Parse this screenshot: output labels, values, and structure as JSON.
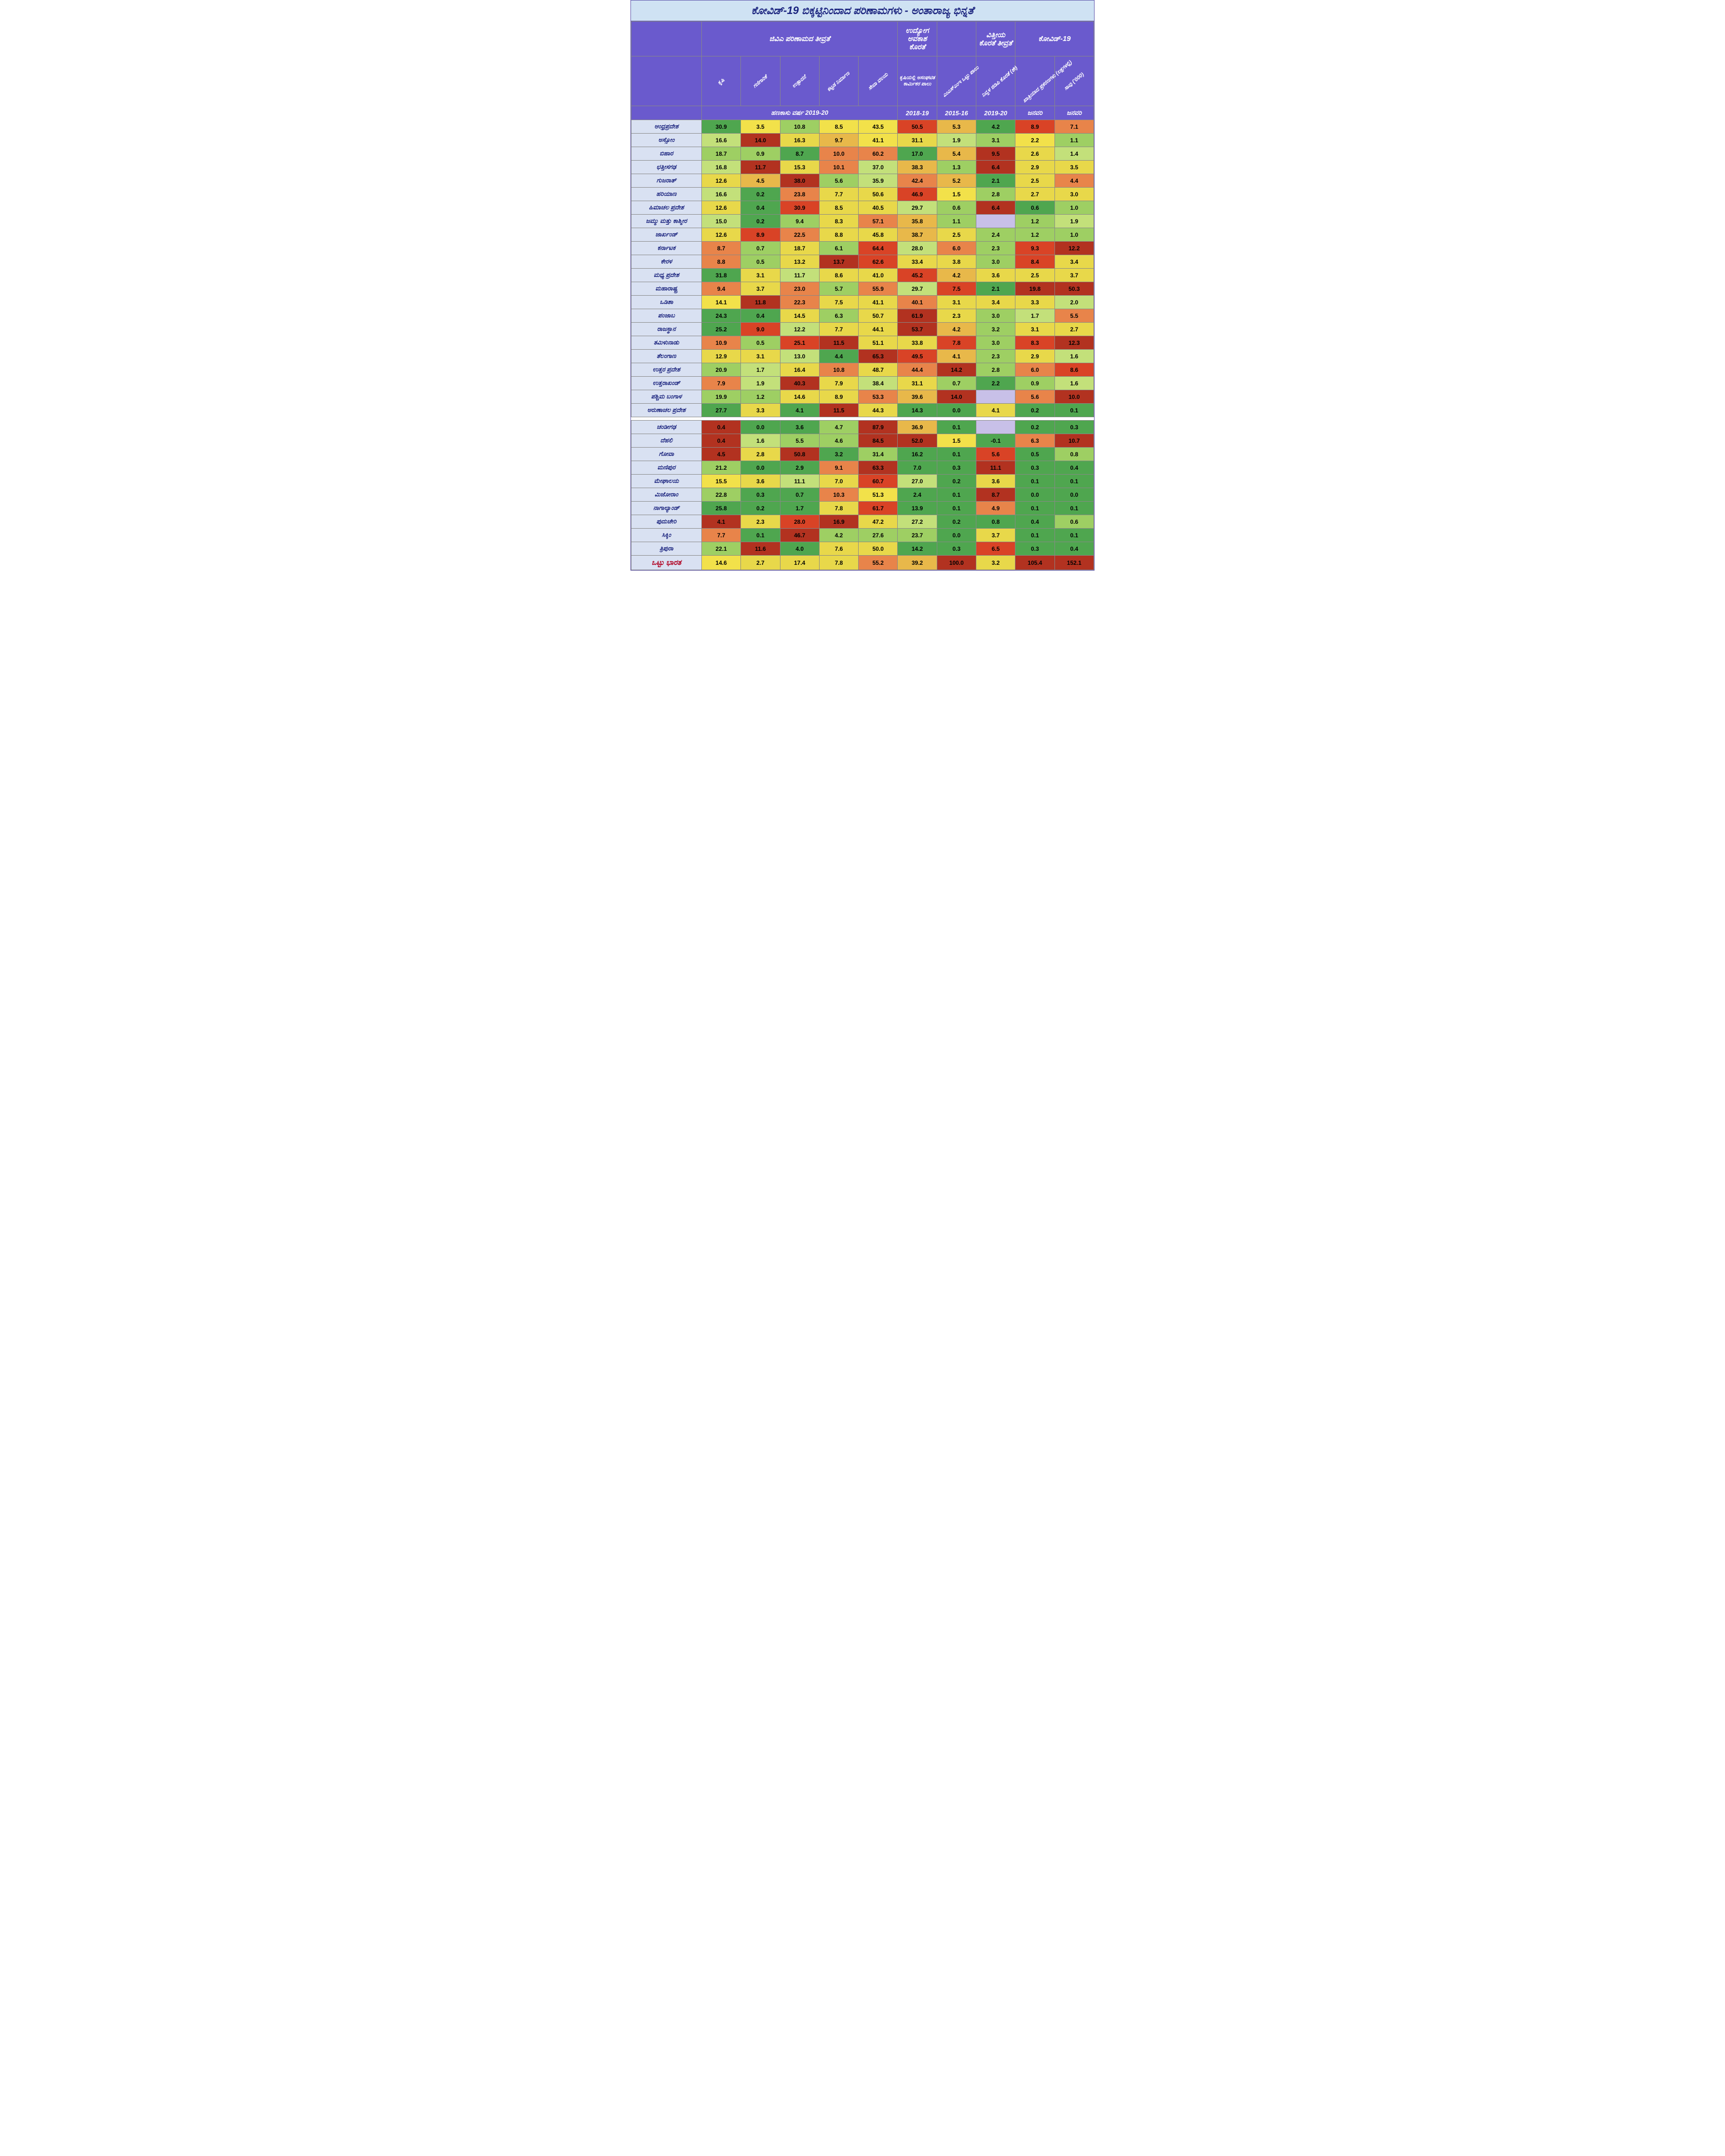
{
  "title": "ಕೋವಿಡ್-19 ಬಿಕ್ಕಟ್ಟಿನಿಂದಾದ ಪರಿಣಾಮಗಳು - ಅಂತಾರಾಜ್ಯ ಭಿನ್ನತೆ",
  "group_headers": [
    "ಜಿವಿಎ ಪರಿಣಾಮದ ತೀವ್ರತೆ",
    "ಉದ್ಯೋಗ ಅವಕಾಶ ಕೊರತೆ",
    "",
    "ವಿತ್ತೀಯ ಕೊರತೆ ತೀವ್ರತೆ",
    "ಕೋವಿಡ್-19"
  ],
  "sub_headers": [
    "ಕೃಷಿ",
    "ಗಣಿಗಾರಿಕೆ",
    "ಉತ್ಪಾದನೆ",
    "ಕಟ್ಟಡ ನಿರ್ಮಾಣ",
    "ಸೇವಾ ವಲಯ",
    "ಕೃಷಿಯಲ್ಲಿ ಅಸಂಘಟಿತ ಕಾರ್ಮಿಕರ ಪಾಲು",
    "ಎಂಎಸ್‌ಎಂಇ ಒಟ್ಟು ಪಾಲು",
    "ನಿವ್ವಳ ಜಿಡಿಪಿ ಕೊರತೆ (ಶೇ)",
    "ಖಾತ್ರಿಯಾದ ಪ್ರಕರಣಗಳು (ಲಕ್ಷಗಳಲ್ಲಿ)",
    "ಸಾವು ('000)"
  ],
  "year_headers": [
    "ಹಣಕಾಸು ವರ್ಷ 2019-20",
    "2018-19",
    "2015-16",
    "2019-20",
    "ಜನವರಿ",
    "ಜನವರಿ"
  ],
  "states_block1": [
    "ಆಂಧ್ರಪ್ರದೇಶ",
    "ಅಸ್ಸೋಂ",
    "ಬಿಹಾರ",
    "ಛತ್ತೀಸಗಢ",
    "ಗುಜರಾತ್",
    "ಹರಿಯಾಣ",
    "ಹಿಮಾಚಲ ಪ್ರದೇಶ",
    "ಜಮ್ಮು ಮತ್ತು ಕಾಶ್ಮೀರ",
    "ಜಾರ್ಖಂಡ್",
    "ಕರ್ನಾಟಕ",
    "ಕೇರಳ",
    "ಮಧ್ಯ ಪ್ರದೇಶ",
    "ಮಹಾರಾಷ್ಟ್ರ",
    "ಒಡಿಶಾ",
    "ಪಂಜಾಬ",
    "ರಾಜಸ್ಥಾನ",
    "ತಮಿಳುನಾಡು",
    "ತೆಲಂಗಾಣ",
    "ಉತ್ತರ ಪ್ರದೇಶ",
    "ಉತ್ತರಾಖಂಡ್",
    "ಪಶ್ಚಿಮ ಬಂಗಾಳ",
    "ಅರುಣಾಚಲ ಪ್ರದೇಶ"
  ],
  "states_block2": [
    "ಚಂಡೀಗಢ",
    "ದೆಹಲಿ",
    "ಗೋವಾ",
    "ಮಣಿಪುರ",
    "ಮೇಘಾಲಯ",
    "ಮಿಜೋರಾಂ",
    "ನಾಗಾಲ್ಯಾಂಡ್",
    "ಪುದುಚೇರಿ",
    "ಸಿಕ್ಕಿಂ",
    "ತ್ರಿಪುರಾ"
  ],
  "total_label": "ಒಟ್ಟು ಭಾರತ",
  "data_block1": [
    [
      [
        "30.9",
        "#4fa64f"
      ],
      [
        "3.5",
        "#f2e14a"
      ],
      [
        "10.8",
        "#9ecf63"
      ],
      [
        "8.5",
        "#f2e14a"
      ],
      [
        "43.5",
        "#f2e14a"
      ],
      [
        "50.5",
        "#d94326"
      ],
      [
        "5.3",
        "#e8b84a"
      ],
      [
        "4.2",
        "#4fa64f"
      ],
      [
        "8.9",
        "#d94326"
      ],
      [
        "7.1",
        "#e8844a"
      ]
    ],
    [
      [
        "16.6",
        "#c3e07a"
      ],
      [
        "14.0",
        "#b23220"
      ],
      [
        "16.3",
        "#e8d84a"
      ],
      [
        "9.7",
        "#e8b84a"
      ],
      [
        "41.1",
        "#f2e14a"
      ],
      [
        "31.1",
        "#e8d84a"
      ],
      [
        "1.9",
        "#c3e07a"
      ],
      [
        "3.1",
        "#9ecf63"
      ],
      [
        "2.2",
        "#f2e14a"
      ],
      [
        "1.1",
        "#9ecf63"
      ]
    ],
    [
      [
        "18.7",
        "#9ecf63"
      ],
      [
        "0.9",
        "#9ecf63"
      ],
      [
        "8.7",
        "#4fa64f"
      ],
      [
        "10.0",
        "#e8844a"
      ],
      [
        "60.2",
        "#e8844a"
      ],
      [
        "17.0",
        "#4fa64f"
      ],
      [
        "5.4",
        "#e8b84a"
      ],
      [
        "9.5",
        "#b23220"
      ],
      [
        "2.6",
        "#e8d84a"
      ],
      [
        "1.4",
        "#c3e07a"
      ]
    ],
    [
      [
        "16.8",
        "#c3e07a"
      ],
      [
        "11.7",
        "#b23220"
      ],
      [
        "15.3",
        "#e8d84a"
      ],
      [
        "10.1",
        "#e8844a"
      ],
      [
        "37.0",
        "#c3e07a"
      ],
      [
        "38.3",
        "#e8b84a"
      ],
      [
        "1.3",
        "#9ecf63"
      ],
      [
        "6.4",
        "#b23220"
      ],
      [
        "2.9",
        "#e8d84a"
      ],
      [
        "3.5",
        "#e8d84a"
      ]
    ],
    [
      [
        "12.6",
        "#e8d84a"
      ],
      [
        "4.5",
        "#e8b84a"
      ],
      [
        "38.0",
        "#b23220"
      ],
      [
        "5.6",
        "#9ecf63"
      ],
      [
        "35.9",
        "#c3e07a"
      ],
      [
        "42.4",
        "#e8844a"
      ],
      [
        "5.2",
        "#e8b84a"
      ],
      [
        "2.1",
        "#4fa64f"
      ],
      [
        "2.5",
        "#e8d84a"
      ],
      [
        "4.4",
        "#e8844a"
      ]
    ],
    [
      [
        "16.6",
        "#c3e07a"
      ],
      [
        "0.2",
        "#4fa64f"
      ],
      [
        "23.8",
        "#e8844a"
      ],
      [
        "7.7",
        "#e8d84a"
      ],
      [
        "50.6",
        "#e8d84a"
      ],
      [
        "46.9",
        "#d94326"
      ],
      [
        "1.5",
        "#f2e14a"
      ],
      [
        "2.8",
        "#9ecf63"
      ],
      [
        "2.7",
        "#e8d84a"
      ],
      [
        "3.0",
        "#e8d84a"
      ]
    ],
    [
      [
        "12.6",
        "#e8d84a"
      ],
      [
        "0.4",
        "#4fa64f"
      ],
      [
        "30.9",
        "#d94326"
      ],
      [
        "8.5",
        "#e8d84a"
      ],
      [
        "40.5",
        "#e8d84a"
      ],
      [
        "29.7",
        "#c3e07a"
      ],
      [
        "0.6",
        "#9ecf63"
      ],
      [
        "6.4",
        "#b23220"
      ],
      [
        "0.6",
        "#4fa64f"
      ],
      [
        "1.0",
        "#9ecf63"
      ]
    ],
    [
      [
        "15.0",
        "#c3e07a"
      ],
      [
        "0.2",
        "#4fa64f"
      ],
      [
        "9.4",
        "#9ecf63"
      ],
      [
        "8.3",
        "#e8d84a"
      ],
      [
        "57.1",
        "#e8844a"
      ],
      [
        "35.8",
        "#e8b84a"
      ],
      [
        "1.1",
        "#9ecf63"
      ],
      [
        "",
        ""
      ],
      [
        "1.2",
        "#9ecf63"
      ],
      [
        "1.9",
        "#c3e07a"
      ]
    ],
    [
      [
        "12.6",
        "#e8d84a"
      ],
      [
        "8.9",
        "#d94326"
      ],
      [
        "22.5",
        "#e8844a"
      ],
      [
        "8.8",
        "#e8d84a"
      ],
      [
        "45.8",
        "#e8d84a"
      ],
      [
        "38.7",
        "#e8b84a"
      ],
      [
        "2.5",
        "#e8d84a"
      ],
      [
        "2.4",
        "#9ecf63"
      ],
      [
        "1.2",
        "#9ecf63"
      ],
      [
        "1.0",
        "#9ecf63"
      ]
    ],
    [
      [
        "8.7",
        "#e8844a"
      ],
      [
        "0.7",
        "#9ecf63"
      ],
      [
        "18.7",
        "#e8d84a"
      ],
      [
        "6.1",
        "#9ecf63"
      ],
      [
        "64.4",
        "#d94326"
      ],
      [
        "28.0",
        "#c3e07a"
      ],
      [
        "6.0",
        "#e8844a"
      ],
      [
        "2.3",
        "#9ecf63"
      ],
      [
        "9.3",
        "#d94326"
      ],
      [
        "12.2",
        "#b23220"
      ]
    ],
    [
      [
        "8.8",
        "#e8844a"
      ],
      [
        "0.5",
        "#9ecf63"
      ],
      [
        "13.2",
        "#e8d84a"
      ],
      [
        "13.7",
        "#b23220"
      ],
      [
        "62.6",
        "#d94326"
      ],
      [
        "33.4",
        "#e8d84a"
      ],
      [
        "3.8",
        "#e8d84a"
      ],
      [
        "3.0",
        "#9ecf63"
      ],
      [
        "8.4",
        "#d94326"
      ],
      [
        "3.4",
        "#e8d84a"
      ]
    ],
    [
      [
        "31.8",
        "#4fa64f"
      ],
      [
        "3.1",
        "#e8d84a"
      ],
      [
        "11.7",
        "#c3e07a"
      ],
      [
        "8.6",
        "#e8d84a"
      ],
      [
        "41.0",
        "#e8d84a"
      ],
      [
        "45.2",
        "#d94326"
      ],
      [
        "4.2",
        "#e8b84a"
      ],
      [
        "3.6",
        "#e8d84a"
      ],
      [
        "2.5",
        "#e8d84a"
      ],
      [
        "3.7",
        "#e8d84a"
      ]
    ],
    [
      [
        "9.4",
        "#e8844a"
      ],
      [
        "3.7",
        "#e8d84a"
      ],
      [
        "23.0",
        "#e8844a"
      ],
      [
        "5.7",
        "#9ecf63"
      ],
      [
        "55.9",
        "#e8844a"
      ],
      [
        "29.7",
        "#c3e07a"
      ],
      [
        "7.5",
        "#d94326"
      ],
      [
        "2.1",
        "#4fa64f"
      ],
      [
        "19.8",
        "#b23220"
      ],
      [
        "50.3",
        "#b23220"
      ]
    ],
    [
      [
        "14.1",
        "#f2e14a"
      ],
      [
        "11.8",
        "#b23220"
      ],
      [
        "22.3",
        "#e8844a"
      ],
      [
        "7.5",
        "#e8d84a"
      ],
      [
        "41.1",
        "#e8d84a"
      ],
      [
        "40.1",
        "#e8844a"
      ],
      [
        "3.1",
        "#e8d84a"
      ],
      [
        "3.4",
        "#e8d84a"
      ],
      [
        "3.3",
        "#e8d84a"
      ],
      [
        "2.0",
        "#c3e07a"
      ]
    ],
    [
      [
        "24.3",
        "#4fa64f"
      ],
      [
        "0.4",
        "#4fa64f"
      ],
      [
        "14.5",
        "#e8d84a"
      ],
      [
        "6.3",
        "#9ecf63"
      ],
      [
        "50.7",
        "#e8d84a"
      ],
      [
        "61.9",
        "#b23220"
      ],
      [
        "2.3",
        "#e8d84a"
      ],
      [
        "3.0",
        "#9ecf63"
      ],
      [
        "1.7",
        "#c3e07a"
      ],
      [
        "5.5",
        "#e8844a"
      ]
    ],
    [
      [
        "25.2",
        "#4fa64f"
      ],
      [
        "9.0",
        "#d94326"
      ],
      [
        "12.2",
        "#c3e07a"
      ],
      [
        "7.7",
        "#e8d84a"
      ],
      [
        "44.1",
        "#e8d84a"
      ],
      [
        "53.7",
        "#b23220"
      ],
      [
        "4.2",
        "#e8b84a"
      ],
      [
        "3.2",
        "#9ecf63"
      ],
      [
        "3.1",
        "#e8d84a"
      ],
      [
        "2.7",
        "#e8d84a"
      ]
    ],
    [
      [
        "10.9",
        "#e8844a"
      ],
      [
        "0.5",
        "#9ecf63"
      ],
      [
        "25.1",
        "#d94326"
      ],
      [
        "11.5",
        "#b23220"
      ],
      [
        "51.1",
        "#e8d84a"
      ],
      [
        "33.8",
        "#e8d84a"
      ],
      [
        "7.8",
        "#d94326"
      ],
      [
        "3.0",
        "#9ecf63"
      ],
      [
        "8.3",
        "#d94326"
      ],
      [
        "12.3",
        "#b23220"
      ]
    ],
    [
      [
        "12.9",
        "#e8d84a"
      ],
      [
        "3.1",
        "#e8d84a"
      ],
      [
        "13.0",
        "#c3e07a"
      ],
      [
        "4.4",
        "#4fa64f"
      ],
      [
        "65.3",
        "#b23220"
      ],
      [
        "49.5",
        "#d94326"
      ],
      [
        "4.1",
        "#e8b84a"
      ],
      [
        "2.3",
        "#9ecf63"
      ],
      [
        "2.9",
        "#e8d84a"
      ],
      [
        "1.6",
        "#c3e07a"
      ]
    ],
    [
      [
        "20.9",
        "#9ecf63"
      ],
      [
        "1.7",
        "#c3e07a"
      ],
      [
        "16.4",
        "#e8d84a"
      ],
      [
        "10.8",
        "#e8844a"
      ],
      [
        "48.7",
        "#e8d84a"
      ],
      [
        "44.4",
        "#e8844a"
      ],
      [
        "14.2",
        "#b23220"
      ],
      [
        "2.8",
        "#9ecf63"
      ],
      [
        "6.0",
        "#e8844a"
      ],
      [
        "8.6",
        "#d94326"
      ]
    ],
    [
      [
        "7.9",
        "#e8844a"
      ],
      [
        "1.9",
        "#c3e07a"
      ],
      [
        "40.3",
        "#b23220"
      ],
      [
        "7.9",
        "#e8d84a"
      ],
      [
        "38.4",
        "#c3e07a"
      ],
      [
        "31.1",
        "#e8d84a"
      ],
      [
        "0.7",
        "#9ecf63"
      ],
      [
        "2.2",
        "#4fa64f"
      ],
      [
        "0.9",
        "#9ecf63"
      ],
      [
        "1.6",
        "#c3e07a"
      ]
    ],
    [
      [
        "19.9",
        "#9ecf63"
      ],
      [
        "1.2",
        "#9ecf63"
      ],
      [
        "14.6",
        "#e8d84a"
      ],
      [
        "8.9",
        "#e8d84a"
      ],
      [
        "53.3",
        "#e8844a"
      ],
      [
        "39.6",
        "#e8b84a"
      ],
      [
        "14.0",
        "#b23220"
      ],
      [
        "",
        ""
      ],
      [
        "5.6",
        "#e8844a"
      ],
      [
        "10.0",
        "#b23220"
      ]
    ],
    [
      [
        "27.7",
        "#4fa64f"
      ],
      [
        "3.3",
        "#e8d84a"
      ],
      [
        "4.1",
        "#4fa64f"
      ],
      [
        "11.5",
        "#b23220"
      ],
      [
        "44.3",
        "#e8d84a"
      ],
      [
        "14.3",
        "#4fa64f"
      ],
      [
        "0.0",
        "#4fa64f"
      ],
      [
        "4.1",
        "#e8d84a"
      ],
      [
        "0.2",
        "#4fa64f"
      ],
      [
        "0.1",
        "#4fa64f"
      ]
    ]
  ],
  "data_block2": [
    [
      [
        "0.4",
        "#b23220"
      ],
      [
        "0.0",
        "#4fa64f"
      ],
      [
        "3.6",
        "#4fa64f"
      ],
      [
        "4.7",
        "#9ecf63"
      ],
      [
        "87.9",
        "#b23220"
      ],
      [
        "36.9",
        "#e8b84a"
      ],
      [
        "0.1",
        "#4fa64f"
      ],
      [
        "",
        ""
      ],
      [
        "0.2",
        "#4fa64f"
      ],
      [
        "0.3",
        "#4fa64f"
      ]
    ],
    [
      [
        "0.4",
        "#b23220"
      ],
      [
        "1.6",
        "#c3e07a"
      ],
      [
        "5.5",
        "#9ecf63"
      ],
      [
        "4.6",
        "#9ecf63"
      ],
      [
        "84.5",
        "#b23220"
      ],
      [
        "52.0",
        "#b23220"
      ],
      [
        "1.5",
        "#f2e14a"
      ],
      [
        "-0.1",
        "#4fa64f"
      ],
      [
        "6.3",
        "#e8844a"
      ],
      [
        "10.7",
        "#b23220"
      ]
    ],
    [
      [
        "4.5",
        "#b23220"
      ],
      [
        "2.8",
        "#e8d84a"
      ],
      [
        "50.8",
        "#b23220"
      ],
      [
        "3.2",
        "#4fa64f"
      ],
      [
        "31.4",
        "#9ecf63"
      ],
      [
        "16.2",
        "#4fa64f"
      ],
      [
        "0.1",
        "#4fa64f"
      ],
      [
        "5.6",
        "#d94326"
      ],
      [
        "0.5",
        "#4fa64f"
      ],
      [
        "0.8",
        "#9ecf63"
      ]
    ],
    [
      [
        "21.2",
        "#9ecf63"
      ],
      [
        "0.0",
        "#4fa64f"
      ],
      [
        "2.9",
        "#4fa64f"
      ],
      [
        "9.1",
        "#e8844a"
      ],
      [
        "63.3",
        "#b23220"
      ],
      [
        "7.0",
        "#4fa64f"
      ],
      [
        "0.3",
        "#4fa64f"
      ],
      [
        "11.1",
        "#b23220"
      ],
      [
        "0.3",
        "#4fa64f"
      ],
      [
        "0.4",
        "#4fa64f"
      ]
    ],
    [
      [
        "15.5",
        "#f2e14a"
      ],
      [
        "3.6",
        "#e8d84a"
      ],
      [
        "11.1",
        "#c3e07a"
      ],
      [
        "7.0",
        "#e8d84a"
      ],
      [
        "60.7",
        "#d94326"
      ],
      [
        "27.0",
        "#c3e07a"
      ],
      [
        "0.2",
        "#4fa64f"
      ],
      [
        "3.6",
        "#e8d84a"
      ],
      [
        "0.1",
        "#4fa64f"
      ],
      [
        "0.1",
        "#4fa64f"
      ]
    ],
    [
      [
        "22.8",
        "#9ecf63"
      ],
      [
        "0.3",
        "#4fa64f"
      ],
      [
        "0.7",
        "#4fa64f"
      ],
      [
        "10.3",
        "#e8844a"
      ],
      [
        "51.3",
        "#f2e14a"
      ],
      [
        "2.4",
        "#4fa64f"
      ],
      [
        "0.1",
        "#4fa64f"
      ],
      [
        "8.7",
        "#b23220"
      ],
      [
        "0.0",
        "#4fa64f"
      ],
      [
        "0.0",
        "#4fa64f"
      ]
    ],
    [
      [
        "25.8",
        "#4fa64f"
      ],
      [
        "0.2",
        "#4fa64f"
      ],
      [
        "1.7",
        "#4fa64f"
      ],
      [
        "7.8",
        "#e8d84a"
      ],
      [
        "61.7",
        "#d94326"
      ],
      [
        "13.9",
        "#4fa64f"
      ],
      [
        "0.1",
        "#4fa64f"
      ],
      [
        "4.9",
        "#e8844a"
      ],
      [
        "0.1",
        "#4fa64f"
      ],
      [
        "0.1",
        "#4fa64f"
      ]
    ],
    [
      [
        "4.1",
        "#b23220"
      ],
      [
        "2.3",
        "#e8d84a"
      ],
      [
        "28.0",
        "#d94326"
      ],
      [
        "16.9",
        "#b23220"
      ],
      [
        "47.2",
        "#e8d84a"
      ],
      [
        "27.2",
        "#c3e07a"
      ],
      [
        "0.2",
        "#4fa64f"
      ],
      [
        "0.8",
        "#4fa64f"
      ],
      [
        "0.4",
        "#4fa64f"
      ],
      [
        "0.6",
        "#9ecf63"
      ]
    ],
    [
      [
        "7.7",
        "#e8844a"
      ],
      [
        "0.1",
        "#4fa64f"
      ],
      [
        "46.7",
        "#b23220"
      ],
      [
        "4.2",
        "#9ecf63"
      ],
      [
        "27.6",
        "#9ecf63"
      ],
      [
        "23.7",
        "#9ecf63"
      ],
      [
        "0.0",
        "#4fa64f"
      ],
      [
        "3.7",
        "#e8d84a"
      ],
      [
        "0.1",
        "#4fa64f"
      ],
      [
        "0.1",
        "#4fa64f"
      ]
    ],
    [
      [
        "22.1",
        "#9ecf63"
      ],
      [
        "11.6",
        "#b23220"
      ],
      [
        "4.0",
        "#4fa64f"
      ],
      [
        "7.6",
        "#e8d84a"
      ],
      [
        "50.0",
        "#e8d84a"
      ],
      [
        "14.2",
        "#4fa64f"
      ],
      [
        "0.3",
        "#4fa64f"
      ],
      [
        "6.5",
        "#d94326"
      ],
      [
        "0.3",
        "#4fa64f"
      ],
      [
        "0.4",
        "#4fa64f"
      ]
    ]
  ],
  "data_total": [
    [
      "14.6",
      "#f2e14a"
    ],
    [
      "2.7",
      "#e8d84a"
    ],
    [
      "17.4",
      "#e8d84a"
    ],
    [
      "7.8",
      "#e8d84a"
    ],
    [
      "55.2",
      "#e8844a"
    ],
    [
      "39.2",
      "#e8b84a"
    ],
    [
      "100.0",
      "#b23220"
    ],
    [
      "3.2",
      "#e8d84a"
    ],
    [
      "105.4",
      "#b23220"
    ],
    [
      "152.1",
      "#b23220"
    ]
  ]
}
